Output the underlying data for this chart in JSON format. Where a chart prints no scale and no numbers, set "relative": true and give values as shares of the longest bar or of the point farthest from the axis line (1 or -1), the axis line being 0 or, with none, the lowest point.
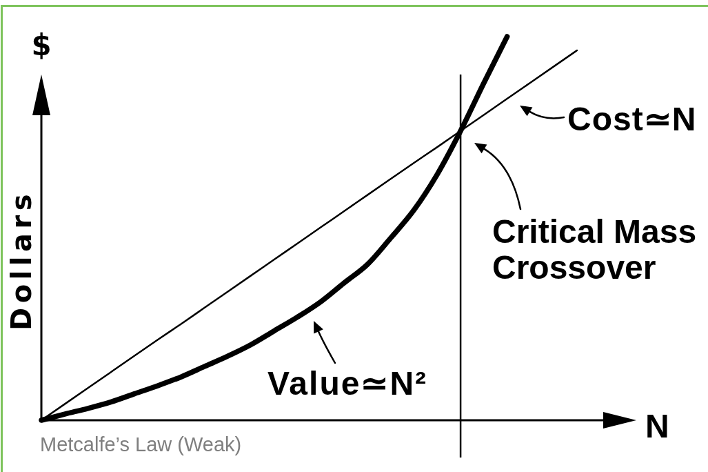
{
  "chart_data": {
    "type": "line",
    "xlabel": "N",
    "ylabel": "Dollars",
    "relative": true,
    "categories": [
      null,
      null,
      null,
      null,
      null,
      null,
      null,
      null,
      null,
      null,
      null,
      null,
      null,
      null,
      null,
      null,
      null,
      null,
      null,
      null,
      null,
      null,
      null,
      null
    ],
    "series": [
      {
        "name": "Cost≃N",
        "color": "#000000",
        "values": [
          0,
          0.042,
          0.084,
          0.126,
          0.168,
          0.21,
          0.251,
          0.293,
          0.335,
          0.377,
          0.419,
          0.461,
          0.503,
          0.545,
          0.587,
          0.629,
          0.671,
          0.712,
          0.754,
          0.796,
          0.838,
          0.88,
          0.922,
          0.964
        ]
      },
      {
        "name": "Value≃N²",
        "color": "#000000",
        "values": [
          0,
          0.016,
          0.031,
          0.048,
          0.069,
          0.09,
          0.113,
          0.14,
          0.167,
          0.197,
          0.233,
          0.269,
          0.309,
          0.358,
          0.406,
          0.475,
          0.548,
          0.641,
          0.754,
          0.879,
          1,
          null,
          null,
          null
        ]
      }
    ],
    "annotations": [
      "$",
      "Critical Mass\nCrossover",
      "Metcalfe’s Law (Weak)"
    ]
  }
}
